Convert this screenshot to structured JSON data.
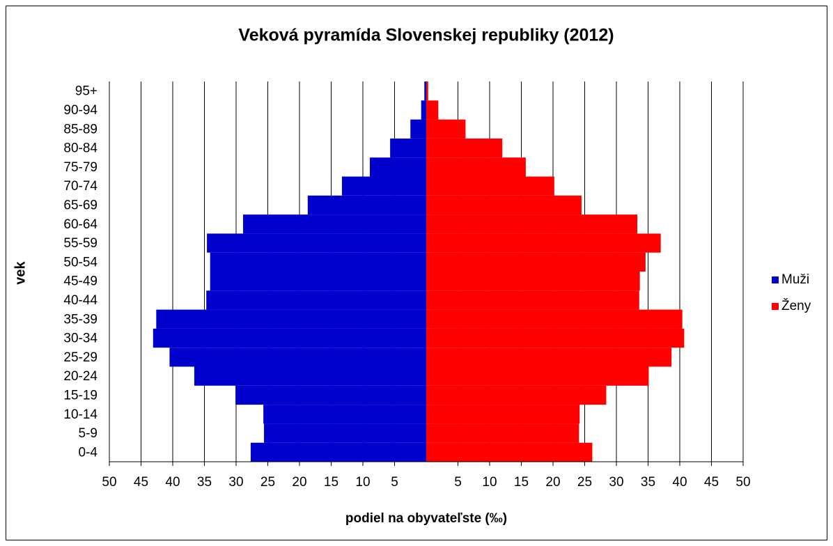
{
  "chart_data": {
    "type": "pyramid",
    "title": "Veková pyramída  Slovenskej republiky (2012)",
    "x_label": "podiel na obyvateľste (‰)",
    "y_label": "vek",
    "categories": [
      "0-4",
      "5-9",
      "10-14",
      "15-19",
      "20-24",
      "25-29",
      "30-34",
      "35-39",
      "40-44",
      "45-49",
      "50-54",
      "55-59",
      "60-64",
      "65-69",
      "70-74",
      "75-79",
      "80-84",
      "85-89",
      "90-94",
      "95+"
    ],
    "series": [
      {
        "name": "Muži",
        "color": "#0000cc",
        "values": [
          -27.7,
          -25.6,
          -25.7,
          -30.1,
          -36.6,
          -40.5,
          -43.1,
          -42.6,
          -34.7,
          -34.1,
          -34.1,
          -34.6,
          -28.9,
          -18.7,
          -13.3,
          -8.9,
          -5.7,
          -2.5,
          -0.8,
          -0.3
        ]
      },
      {
        "name": "Ženy",
        "color": "#ff0000",
        "values": [
          26.2,
          24.1,
          24.2,
          28.4,
          35.1,
          38.7,
          40.7,
          40.4,
          33.6,
          33.7,
          34.6,
          37.0,
          33.3,
          24.5,
          20.2,
          15.7,
          12.0,
          6.2,
          1.9,
          0.3
        ]
      }
    ],
    "xlim": [
      -50,
      50
    ],
    "xticks": [
      {
        "value": -50,
        "label": "50"
      },
      {
        "value": -45,
        "label": "45"
      },
      {
        "value": -40,
        "label": "40"
      },
      {
        "value": -35,
        "label": "35"
      },
      {
        "value": -30,
        "label": "30"
      },
      {
        "value": -25,
        "label": "25"
      },
      {
        "value": -20,
        "label": "20"
      },
      {
        "value": -15,
        "label": "15"
      },
      {
        "value": -10,
        "label": "10"
      },
      {
        "value": -5,
        "label": "5"
      },
      5,
      10,
      15,
      20,
      25,
      30,
      35,
      40,
      45,
      50
    ],
    "grid": true,
    "legend": "right"
  }
}
